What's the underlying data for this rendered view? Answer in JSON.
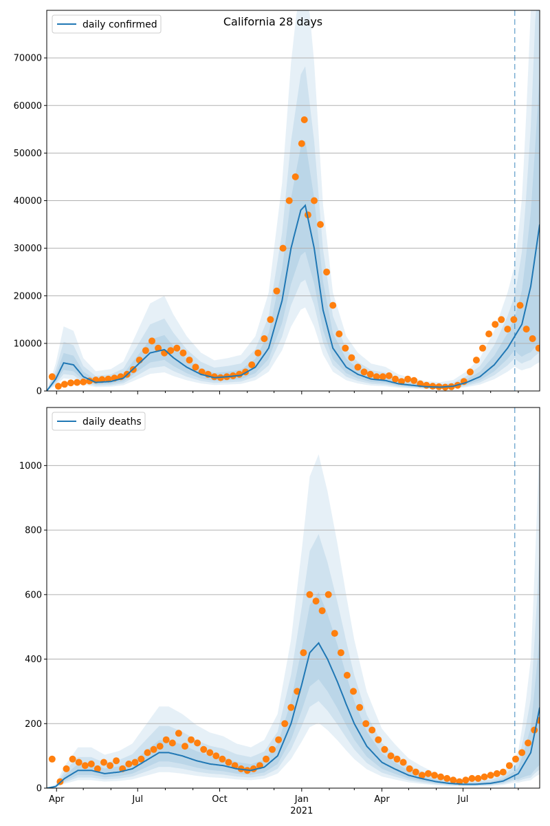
{
  "figure": {
    "title": "California 28 days",
    "year_label": "2021",
    "month_ticks": [
      "Apr",
      "Jul",
      "Oct",
      "Jan",
      "Apr",
      "Jul"
    ]
  },
  "colors": {
    "line": "#1f77b4",
    "points": "#ff7f0e",
    "band": "#1f77b4",
    "grid": "#b0b0b0",
    "forecast_line": "#1f77b4"
  },
  "chart_data": [
    {
      "type": "line",
      "panel": "confirmed",
      "title": "California 28 days",
      "legend": [
        "daily confirmed"
      ],
      "legend_location": "top-left",
      "grid": "horizontal",
      "x_range": [
        "2020-03-21",
        "2021-09-25"
      ],
      "ylim": [
        0,
        80000
      ],
      "y_ticks": [
        0,
        10000,
        20000,
        30000,
        40000,
        50000,
        60000,
        70000
      ],
      "forecast_start": "2021-08-28",
      "series": [
        {
          "name": "daily confirmed",
          "kind": "model median",
          "dates": [
            "2020-03-21",
            "2020-03-31",
            "2020-04-09",
            "2020-04-20",
            "2020-05-01",
            "2020-05-15",
            "2020-06-01",
            "2020-06-15",
            "2020-07-01",
            "2020-07-15",
            "2020-07-31",
            "2020-08-10",
            "2020-08-25",
            "2020-09-10",
            "2020-09-25",
            "2020-10-10",
            "2020-10-25",
            "2020-11-10",
            "2020-11-25",
            "2020-12-10",
            "2020-12-20",
            "2020-12-31",
            "2021-01-05",
            "2021-01-15",
            "2021-01-25",
            "2021-02-05",
            "2021-02-20",
            "2021-03-05",
            "2021-03-20",
            "2021-04-05",
            "2021-04-20",
            "2021-05-05",
            "2021-05-20",
            "2021-06-05",
            "2021-06-20",
            "2021-07-05",
            "2021-07-20",
            "2021-08-05",
            "2021-08-20",
            "2021-09-05",
            "2021-09-15",
            "2021-09-25"
          ],
          "values": [
            0,
            2500,
            5900,
            5500,
            3000,
            1800,
            2000,
            2700,
            5500,
            8000,
            8700,
            7000,
            5000,
            3500,
            2800,
            3000,
            3300,
            5000,
            9000,
            19000,
            30000,
            38000,
            39000,
            30000,
            17000,
            9000,
            5000,
            3500,
            2500,
            2200,
            1500,
            1200,
            900,
            800,
            1000,
            1800,
            3000,
            5500,
            9000,
            14000,
            22000,
            35000
          ]
        },
        {
          "name": "",
          "kind": "observed daily",
          "dates": [
            "2020-03-27",
            "2020-04-03",
            "2020-04-10",
            "2020-04-17",
            "2020-04-24",
            "2020-05-01",
            "2020-05-08",
            "2020-05-15",
            "2020-05-22",
            "2020-05-29",
            "2020-06-05",
            "2020-06-12",
            "2020-06-19",
            "2020-06-26",
            "2020-07-03",
            "2020-07-10",
            "2020-07-17",
            "2020-07-24",
            "2020-07-31",
            "2020-08-07",
            "2020-08-14",
            "2020-08-21",
            "2020-08-28",
            "2020-09-04",
            "2020-09-11",
            "2020-09-18",
            "2020-09-25",
            "2020-10-02",
            "2020-10-09",
            "2020-10-16",
            "2020-10-23",
            "2020-10-30",
            "2020-11-06",
            "2020-11-13",
            "2020-11-20",
            "2020-11-27",
            "2020-12-04",
            "2020-12-11",
            "2020-12-18",
            "2020-12-25",
            "2021-01-01",
            "2021-01-04",
            "2021-01-08",
            "2021-01-15",
            "2021-01-22",
            "2021-01-29",
            "2021-02-05",
            "2021-02-12",
            "2021-02-19",
            "2021-02-26",
            "2021-03-05",
            "2021-03-12",
            "2021-03-19",
            "2021-03-26",
            "2021-04-02",
            "2021-04-09",
            "2021-04-16",
            "2021-04-23",
            "2021-04-30",
            "2021-05-07",
            "2021-05-14",
            "2021-05-21",
            "2021-05-28",
            "2021-06-04",
            "2021-06-11",
            "2021-06-18",
            "2021-06-25",
            "2021-07-02",
            "2021-07-09",
            "2021-07-16",
            "2021-07-23",
            "2021-07-30",
            "2021-08-06",
            "2021-08-13",
            "2021-08-20",
            "2021-08-27",
            "2021-09-03",
            "2021-09-10",
            "2021-09-17",
            "2021-09-24"
          ],
          "values": [
            3000,
            1000,
            1400,
            1700,
            1800,
            1900,
            2100,
            2300,
            2400,
            2500,
            2700,
            3000,
            3500,
            4500,
            6500,
            8500,
            10500,
            9000,
            8000,
            8500,
            9000,
            8000,
            6500,
            5000,
            4000,
            3500,
            3000,
            2800,
            3000,
            3200,
            3500,
            4000,
            5500,
            8000,
            11000,
            15000,
            21000,
            30000,
            40000,
            45000,
            52000,
            57000,
            37000,
            40000,
            35000,
            25000,
            18000,
            12000,
            9000,
            7000,
            5000,
            4000,
            3500,
            3000,
            3000,
            3200,
            2500,
            2000,
            2500,
            2200,
            1500,
            1200,
            1000,
            900,
            800,
            900,
            1200,
            2000,
            4000,
            6500,
            9000,
            12000,
            14000,
            15000,
            13000,
            15000,
            18000,
            13000,
            11000,
            9000
          ]
        }
      ]
    },
    {
      "type": "line",
      "panel": "deaths",
      "title": "",
      "legend": [
        "daily deaths"
      ],
      "legend_location": "top-left",
      "grid": "horizontal",
      "x_range": [
        "2020-03-21",
        "2021-09-25"
      ],
      "ylim": [
        0,
        1180
      ],
      "y_ticks": [
        0,
        200,
        400,
        600,
        800,
        1000
      ],
      "forecast_start": "2021-08-28",
      "series": [
        {
          "name": "daily deaths",
          "kind": "model median",
          "dates": [
            "2020-03-21",
            "2020-03-31",
            "2020-04-10",
            "2020-04-25",
            "2020-05-10",
            "2020-05-25",
            "2020-06-10",
            "2020-06-25",
            "2020-07-10",
            "2020-07-25",
            "2020-08-05",
            "2020-08-20",
            "2020-09-05",
            "2020-09-20",
            "2020-10-05",
            "2020-10-20",
            "2020-11-05",
            "2020-11-20",
            "2020-12-05",
            "2020-12-20",
            "2021-01-01",
            "2021-01-10",
            "2021-01-20",
            "2021-01-30",
            "2021-02-10",
            "2021-02-20",
            "2021-03-01",
            "2021-03-15",
            "2021-04-01",
            "2021-04-15",
            "2021-05-01",
            "2021-05-15",
            "2021-06-01",
            "2021-06-15",
            "2021-07-01",
            "2021-07-15",
            "2021-08-01",
            "2021-08-15",
            "2021-09-01",
            "2021-09-15",
            "2021-09-25"
          ],
          "values": [
            0,
            5,
            30,
            55,
            55,
            45,
            50,
            60,
            85,
            110,
            110,
            100,
            85,
            75,
            70,
            60,
            55,
            65,
            100,
            200,
            320,
            420,
            450,
            400,
            330,
            260,
            200,
            130,
            80,
            60,
            40,
            30,
            20,
            15,
            12,
            12,
            15,
            22,
            45,
            110,
            250
          ]
        },
        {
          "name": "",
          "kind": "observed daily",
          "dates": [
            "2020-03-27",
            "2020-04-05",
            "2020-04-12",
            "2020-04-19",
            "2020-04-26",
            "2020-05-03",
            "2020-05-10",
            "2020-05-17",
            "2020-05-24",
            "2020-05-31",
            "2020-06-07",
            "2020-06-14",
            "2020-06-21",
            "2020-06-28",
            "2020-07-05",
            "2020-07-12",
            "2020-07-19",
            "2020-07-26",
            "2020-08-02",
            "2020-08-09",
            "2020-08-16",
            "2020-08-23",
            "2020-08-30",
            "2020-09-06",
            "2020-09-13",
            "2020-09-20",
            "2020-09-27",
            "2020-10-04",
            "2020-10-11",
            "2020-10-18",
            "2020-10-25",
            "2020-11-01",
            "2020-11-08",
            "2020-11-15",
            "2020-11-22",
            "2020-11-29",
            "2020-12-06",
            "2020-12-13",
            "2020-12-20",
            "2020-12-27",
            "2021-01-03",
            "2021-01-10",
            "2021-01-17",
            "2021-01-24",
            "2021-01-31",
            "2021-02-07",
            "2021-02-14",
            "2021-02-21",
            "2021-02-28",
            "2021-03-07",
            "2021-03-14",
            "2021-03-21",
            "2021-03-28",
            "2021-04-04",
            "2021-04-11",
            "2021-04-18",
            "2021-04-25",
            "2021-05-02",
            "2021-05-09",
            "2021-05-16",
            "2021-05-23",
            "2021-05-30",
            "2021-06-06",
            "2021-06-13",
            "2021-06-20",
            "2021-06-27",
            "2021-07-04",
            "2021-07-11",
            "2021-07-18",
            "2021-07-25",
            "2021-08-01",
            "2021-08-08",
            "2021-08-15",
            "2021-08-22",
            "2021-08-29",
            "2021-09-05",
            "2021-09-12",
            "2021-09-19",
            "2021-09-25"
          ],
          "values": [
            90,
            20,
            60,
            90,
            80,
            70,
            75,
            60,
            80,
            70,
            85,
            60,
            75,
            80,
            90,
            110,
            120,
            130,
            150,
            140,
            170,
            130,
            150,
            140,
            120,
            110,
            100,
            90,
            80,
            70,
            60,
            55,
            60,
            70,
            90,
            120,
            150,
            200,
            250,
            300,
            420,
            600,
            580,
            550,
            600,
            480,
            420,
            350,
            300,
            250,
            200,
            180,
            150,
            120,
            100,
            90,
            80,
            60,
            50,
            40,
            45,
            40,
            35,
            30,
            25,
            20,
            25,
            30,
            30,
            35,
            40,
            45,
            50,
            70,
            90,
            110,
            140,
            180,
            210
          ]
        }
      ]
    }
  ]
}
